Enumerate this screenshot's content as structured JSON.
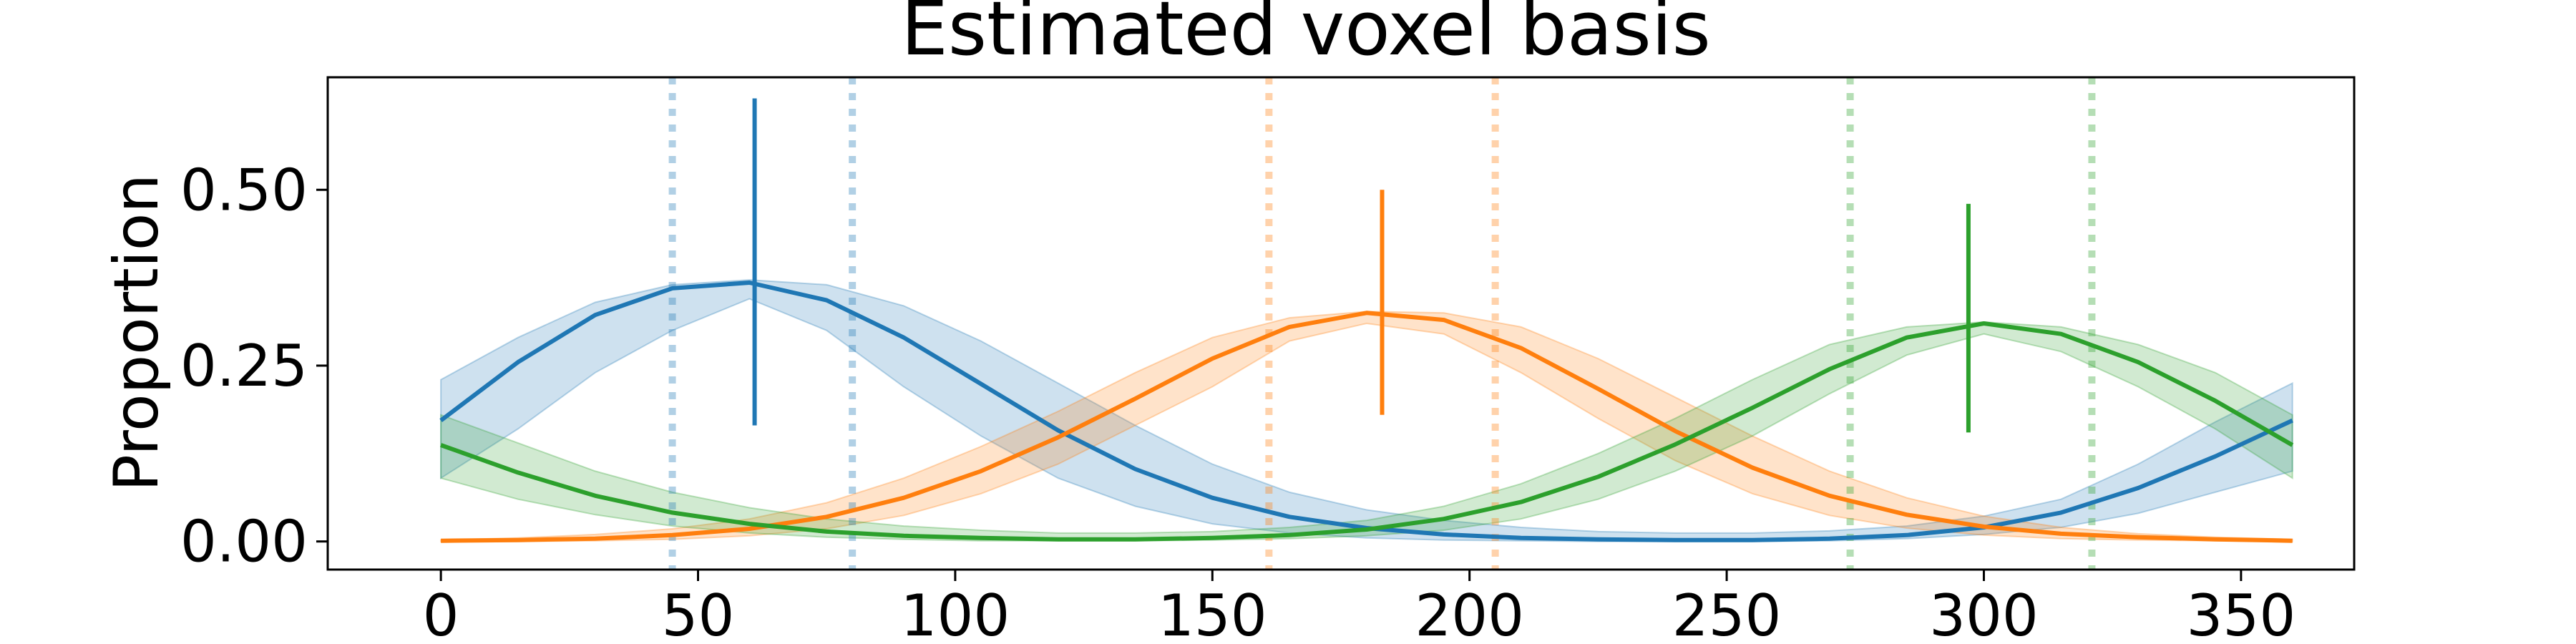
{
  "chart_data": {
    "type": "line",
    "title": "Estimated voxel basis",
    "xlabel": "",
    "ylabel": "Proportion",
    "xlim": [
      -22,
      372
    ],
    "ylim": [
      -0.04,
      0.66
    ],
    "xticks": [
      0,
      50,
      100,
      150,
      200,
      250,
      300,
      350
    ],
    "yticks": [
      0.0,
      0.25,
      0.5
    ],
    "ytick_labels": [
      "0.00",
      "0.25",
      "0.50"
    ],
    "grid": false,
    "x": [
      0,
      15,
      30,
      45,
      60,
      75,
      90,
      105,
      120,
      135,
      150,
      165,
      180,
      195,
      210,
      225,
      240,
      255,
      270,
      285,
      300,
      315,
      330,
      345,
      360
    ],
    "series": [
      {
        "color": "#1f77b4",
        "peak_x": 61,
        "values": [
          0.172,
          0.255,
          0.322,
          0.36,
          0.368,
          0.343,
          0.29,
          0.224,
          0.158,
          0.103,
          0.062,
          0.035,
          0.019,
          0.01,
          0.005,
          0.003,
          0.002,
          0.002,
          0.004,
          0.009,
          0.02,
          0.041,
          0.076,
          0.121,
          0.172
        ],
        "band_lower": [
          0.09,
          0.16,
          0.24,
          0.3,
          0.345,
          0.3,
          0.22,
          0.15,
          0.09,
          0.05,
          0.025,
          0.012,
          0.005,
          0.002,
          0.001,
          0.0,
          0.0,
          0.0,
          0.001,
          0.004,
          0.01,
          0.02,
          0.04,
          0.07,
          0.1
        ],
        "band_upper": [
          0.23,
          0.29,
          0.34,
          0.365,
          0.372,
          0.365,
          0.335,
          0.285,
          0.225,
          0.165,
          0.11,
          0.07,
          0.045,
          0.03,
          0.02,
          0.014,
          0.012,
          0.012,
          0.015,
          0.022,
          0.036,
          0.06,
          0.11,
          0.17,
          0.225
        ],
        "error_bar": {
          "x": 61,
          "low": 0.165,
          "high": 0.63
        },
        "dotted_lines": [
          45,
          80
        ]
      },
      {
        "color": "#ff7f0e",
        "peak_x": 183,
        "values": [
          0.001,
          0.002,
          0.004,
          0.009,
          0.018,
          0.035,
          0.062,
          0.1,
          0.148,
          0.203,
          0.26,
          0.305,
          0.325,
          0.315,
          0.275,
          0.217,
          0.157,
          0.105,
          0.065,
          0.038,
          0.021,
          0.011,
          0.006,
          0.003,
          0.001
        ],
        "band_lower": [
          0.0,
          0.0,
          0.001,
          0.003,
          0.008,
          0.018,
          0.037,
          0.068,
          0.11,
          0.165,
          0.22,
          0.285,
          0.31,
          0.295,
          0.24,
          0.175,
          0.115,
          0.068,
          0.037,
          0.019,
          0.009,
          0.004,
          0.002,
          0.001,
          0.0
        ],
        "band_upper": [
          0.002,
          0.005,
          0.01,
          0.018,
          0.032,
          0.055,
          0.09,
          0.135,
          0.185,
          0.24,
          0.29,
          0.318,
          0.327,
          0.325,
          0.305,
          0.26,
          0.205,
          0.15,
          0.1,
          0.062,
          0.036,
          0.02,
          0.011,
          0.006,
          0.003
        ],
        "error_bar": {
          "x": 183,
          "low": 0.18,
          "high": 0.5
        },
        "dotted_lines": [
          161,
          205
        ]
      },
      {
        "color": "#2ca02c",
        "peak_x": 297,
        "values": [
          0.137,
          0.098,
          0.065,
          0.041,
          0.025,
          0.014,
          0.008,
          0.005,
          0.003,
          0.003,
          0.005,
          0.009,
          0.017,
          0.032,
          0.056,
          0.092,
          0.138,
          0.19,
          0.245,
          0.29,
          0.31,
          0.295,
          0.255,
          0.2,
          0.137
        ],
        "band_lower": [
          0.09,
          0.06,
          0.038,
          0.022,
          0.012,
          0.006,
          0.003,
          0.001,
          0.001,
          0.001,
          0.002,
          0.004,
          0.008,
          0.016,
          0.032,
          0.06,
          0.1,
          0.15,
          0.21,
          0.265,
          0.295,
          0.27,
          0.22,
          0.16,
          0.09
        ],
        "band_upper": [
          0.18,
          0.14,
          0.1,
          0.07,
          0.048,
          0.032,
          0.022,
          0.016,
          0.012,
          0.012,
          0.014,
          0.02,
          0.03,
          0.05,
          0.082,
          0.125,
          0.175,
          0.23,
          0.28,
          0.305,
          0.312,
          0.305,
          0.28,
          0.24,
          0.18
        ],
        "error_bar": {
          "x": 297,
          "low": 0.155,
          "high": 0.48
        },
        "dotted_lines": [
          274,
          321
        ]
      }
    ]
  }
}
